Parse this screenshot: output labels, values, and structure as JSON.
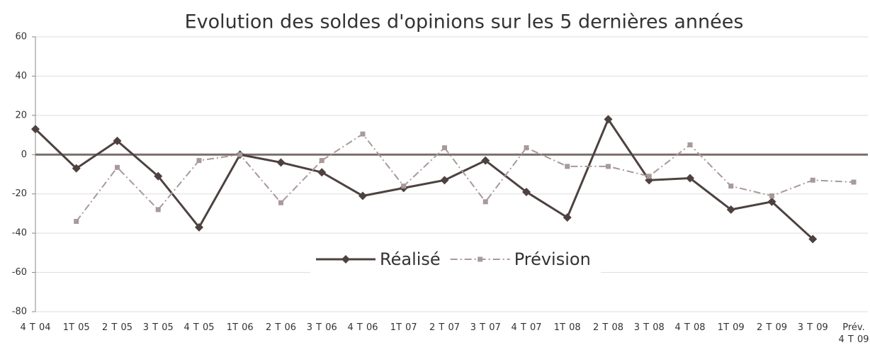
{
  "chart_data": {
    "type": "line",
    "title": "Evolution des soldes d'opinions sur les 5 dernières années",
    "categories": [
      "4 T 04",
      "1T 05",
      "2 T 05",
      "3 T 05",
      "4 T 05",
      "1T 06",
      "2 T 06",
      "3 T 06",
      "4 T 06",
      "1T 07",
      "2 T 07",
      "3 T 07",
      "4 T 07",
      "1T 08",
      "2 T 08",
      "3 T 08",
      "4 T 08",
      "1T 09",
      "2 T 09",
      "3 T 09",
      "Prév. 4 T 09"
    ],
    "series": [
      {
        "name": "Réalisé",
        "color": "#4d4240",
        "style": "solid",
        "marker": "diamond",
        "values": [
          13,
          -7,
          7,
          -11,
          -37,
          0,
          -4,
          -9,
          -21,
          -17,
          -13,
          -3,
          -19,
          -32,
          18,
          -13,
          -12,
          -28,
          -24,
          -43,
          null
        ]
      },
      {
        "name": "Prévision",
        "color": "#a8999a",
        "style": "dashdot",
        "marker": "square",
        "values": [
          null,
          -34,
          -6.5,
          -28,
          -3,
          0,
          -24.5,
          -3,
          10.5,
          -16,
          3.5,
          -24,
          3.5,
          -6,
          -6,
          -11,
          5,
          -16,
          -21,
          -13,
          -14
        ]
      }
    ],
    "ylim": [
      -80,
      60
    ],
    "yticks": [
      -80,
      -60,
      -40,
      -20,
      0,
      20,
      40,
      60
    ],
    "grid": true,
    "legend": "center"
  }
}
